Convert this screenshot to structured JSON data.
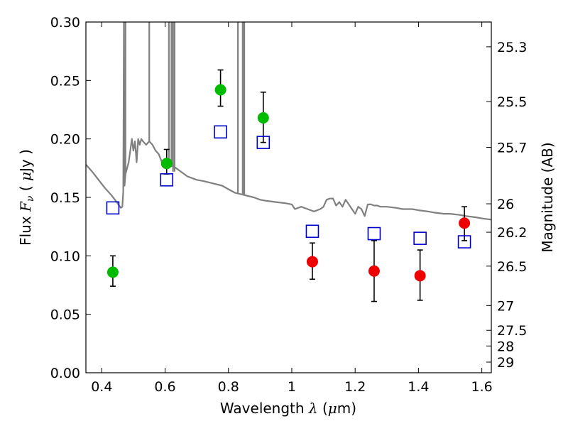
{
  "chart_data": {
    "type": "scatter",
    "title": "",
    "xlabel": "Wavelength  λ (μm)",
    "ylabel": "Flux  Fν  ( μJy )",
    "y2label": "Magnitude (AB)",
    "xlim": [
      0.35,
      1.63
    ],
    "ylim": [
      0.0,
      0.3
    ],
    "grid": false,
    "legend": "none",
    "x_ticks": [
      0.4,
      0.6,
      0.8,
      1.0,
      1.2,
      1.4,
      1.6
    ],
    "x_tick_labels": [
      "0.4",
      "0.6",
      "0.8",
      "1",
      "1.2",
      "1.4",
      "1.6"
    ],
    "y_ticks": [
      0.0,
      0.05,
      0.1,
      0.15,
      0.2,
      0.25,
      0.3
    ],
    "y_tick_labels": [
      "0.00",
      "0.05",
      "0.10",
      "0.15",
      "0.20",
      "0.25",
      "0.30"
    ],
    "y2_ticks": [
      {
        "flux": 0.2788,
        "label": "25.3"
      },
      {
        "flux": 0.2319,
        "label": "25.5"
      },
      {
        "flux": 0.1928,
        "label": "25.7"
      },
      {
        "flux": 0.1445,
        "label": "26"
      },
      {
        "flux": 0.1202,
        "label": "26.2"
      },
      {
        "flux": 0.0912,
        "label": "26.5"
      },
      {
        "flux": 0.0575,
        "label": "27"
      },
      {
        "flux": 0.0363,
        "label": "27.5"
      },
      {
        "flux": 0.0229,
        "label": "28"
      },
      {
        "flux": 0.0091,
        "label": "29"
      }
    ],
    "series": [
      {
        "kind": "line",
        "color": "#808080",
        "x": [
          0.35,
          0.37,
          0.39,
          0.41,
          0.43,
          0.45,
          0.46,
          0.465,
          0.468,
          0.47,
          0.472,
          0.475,
          0.48,
          0.485,
          0.49,
          0.495,
          0.5,
          0.505,
          0.51,
          0.515,
          0.52,
          0.525,
          0.53,
          0.54,
          0.55,
          0.56,
          0.57,
          0.58,
          0.59,
          0.6,
          0.61,
          0.62,
          0.63,
          0.64,
          0.65,
          0.67,
          0.7,
          0.72,
          0.75,
          0.78,
          0.8,
          0.82,
          0.85,
          0.88,
          0.9,
          0.92,
          0.95,
          0.98,
          1.0,
          1.01,
          1.03,
          1.05,
          1.07,
          1.09,
          1.1,
          1.11,
          1.12,
          1.13,
          1.14,
          1.15,
          1.16,
          1.17,
          1.18,
          1.19,
          1.2,
          1.21,
          1.22,
          1.23,
          1.24,
          1.25,
          1.26,
          1.27,
          1.28,
          1.3,
          1.33,
          1.35,
          1.38,
          1.4,
          1.43,
          1.45,
          1.48,
          1.5,
          1.53,
          1.55,
          1.58,
          1.6,
          1.63
        ],
        "y": [
          0.178,
          0.172,
          0.165,
          0.158,
          0.152,
          0.145,
          0.141,
          0.142,
          0.155,
          0.3,
          0.16,
          0.17,
          0.175,
          0.18,
          0.19,
          0.2,
          0.19,
          0.198,
          0.18,
          0.2,
          0.195,
          0.2,
          0.198,
          0.195,
          0.198,
          0.195,
          0.19,
          0.187,
          0.18,
          0.178,
          0.175,
          0.18,
          0.176,
          0.174,
          0.172,
          0.168,
          0.165,
          0.164,
          0.162,
          0.16,
          0.157,
          0.154,
          0.152,
          0.15,
          0.148,
          0.147,
          0.146,
          0.145,
          0.144,
          0.14,
          0.142,
          0.14,
          0.138,
          0.14,
          0.142,
          0.148,
          0.149,
          0.149,
          0.143,
          0.146,
          0.142,
          0.148,
          0.144,
          0.14,
          0.136,
          0.142,
          0.14,
          0.134,
          0.144,
          0.144,
          0.143,
          0.143,
          0.142,
          0.142,
          0.141,
          0.14,
          0.14,
          0.139,
          0.138,
          0.137,
          0.136,
          0.136,
          0.135,
          0.134,
          0.133,
          0.132,
          0.131
        ]
      },
      {
        "kind": "spikes",
        "color": "#808080",
        "x": [
          0.475,
          0.55,
          0.612,
          0.62,
          0.625,
          0.63,
          0.83,
          0.845,
          0.85
        ],
        "y_base": [
          0.17,
          0.198,
          0.175,
          0.176,
          0.172,
          0.172,
          0.154,
          0.152,
          0.152
        ],
        "y_top": [
          0.3,
          0.3,
          0.3,
          0.3,
          0.3,
          0.3,
          0.3,
          0.3,
          0.3
        ]
      },
      {
        "kind": "markers",
        "marker": "square-open",
        "color": "#0000cc",
        "x": [
          0.435,
          0.605,
          0.775,
          0.91,
          1.065,
          1.26,
          1.405,
          1.545
        ],
        "y": [
          0.141,
          0.165,
          0.206,
          0.197,
          0.121,
          0.119,
          0.115,
          0.112
        ]
      },
      {
        "kind": "markers",
        "marker": "circle",
        "color": "#00bb00",
        "x": [
          0.435,
          0.605,
          0.775,
          0.91
        ],
        "y": [
          0.086,
          0.179,
          0.242,
          0.218
        ],
        "yerr_low": [
          0.074,
          0.17,
          0.228,
          0.197
        ],
        "yerr_high": [
          0.1,
          0.191,
          0.259,
          0.24
        ]
      },
      {
        "kind": "markers",
        "marker": "circle",
        "color": "#ee0000",
        "x": [
          1.065,
          1.26,
          1.405,
          1.545
        ],
        "y": [
          0.095,
          0.087,
          0.083,
          0.128
        ],
        "yerr_low": [
          0.08,
          0.061,
          0.062,
          0.113
        ],
        "yerr_high": [
          0.111,
          0.113,
          0.105,
          0.142
        ]
      }
    ]
  }
}
